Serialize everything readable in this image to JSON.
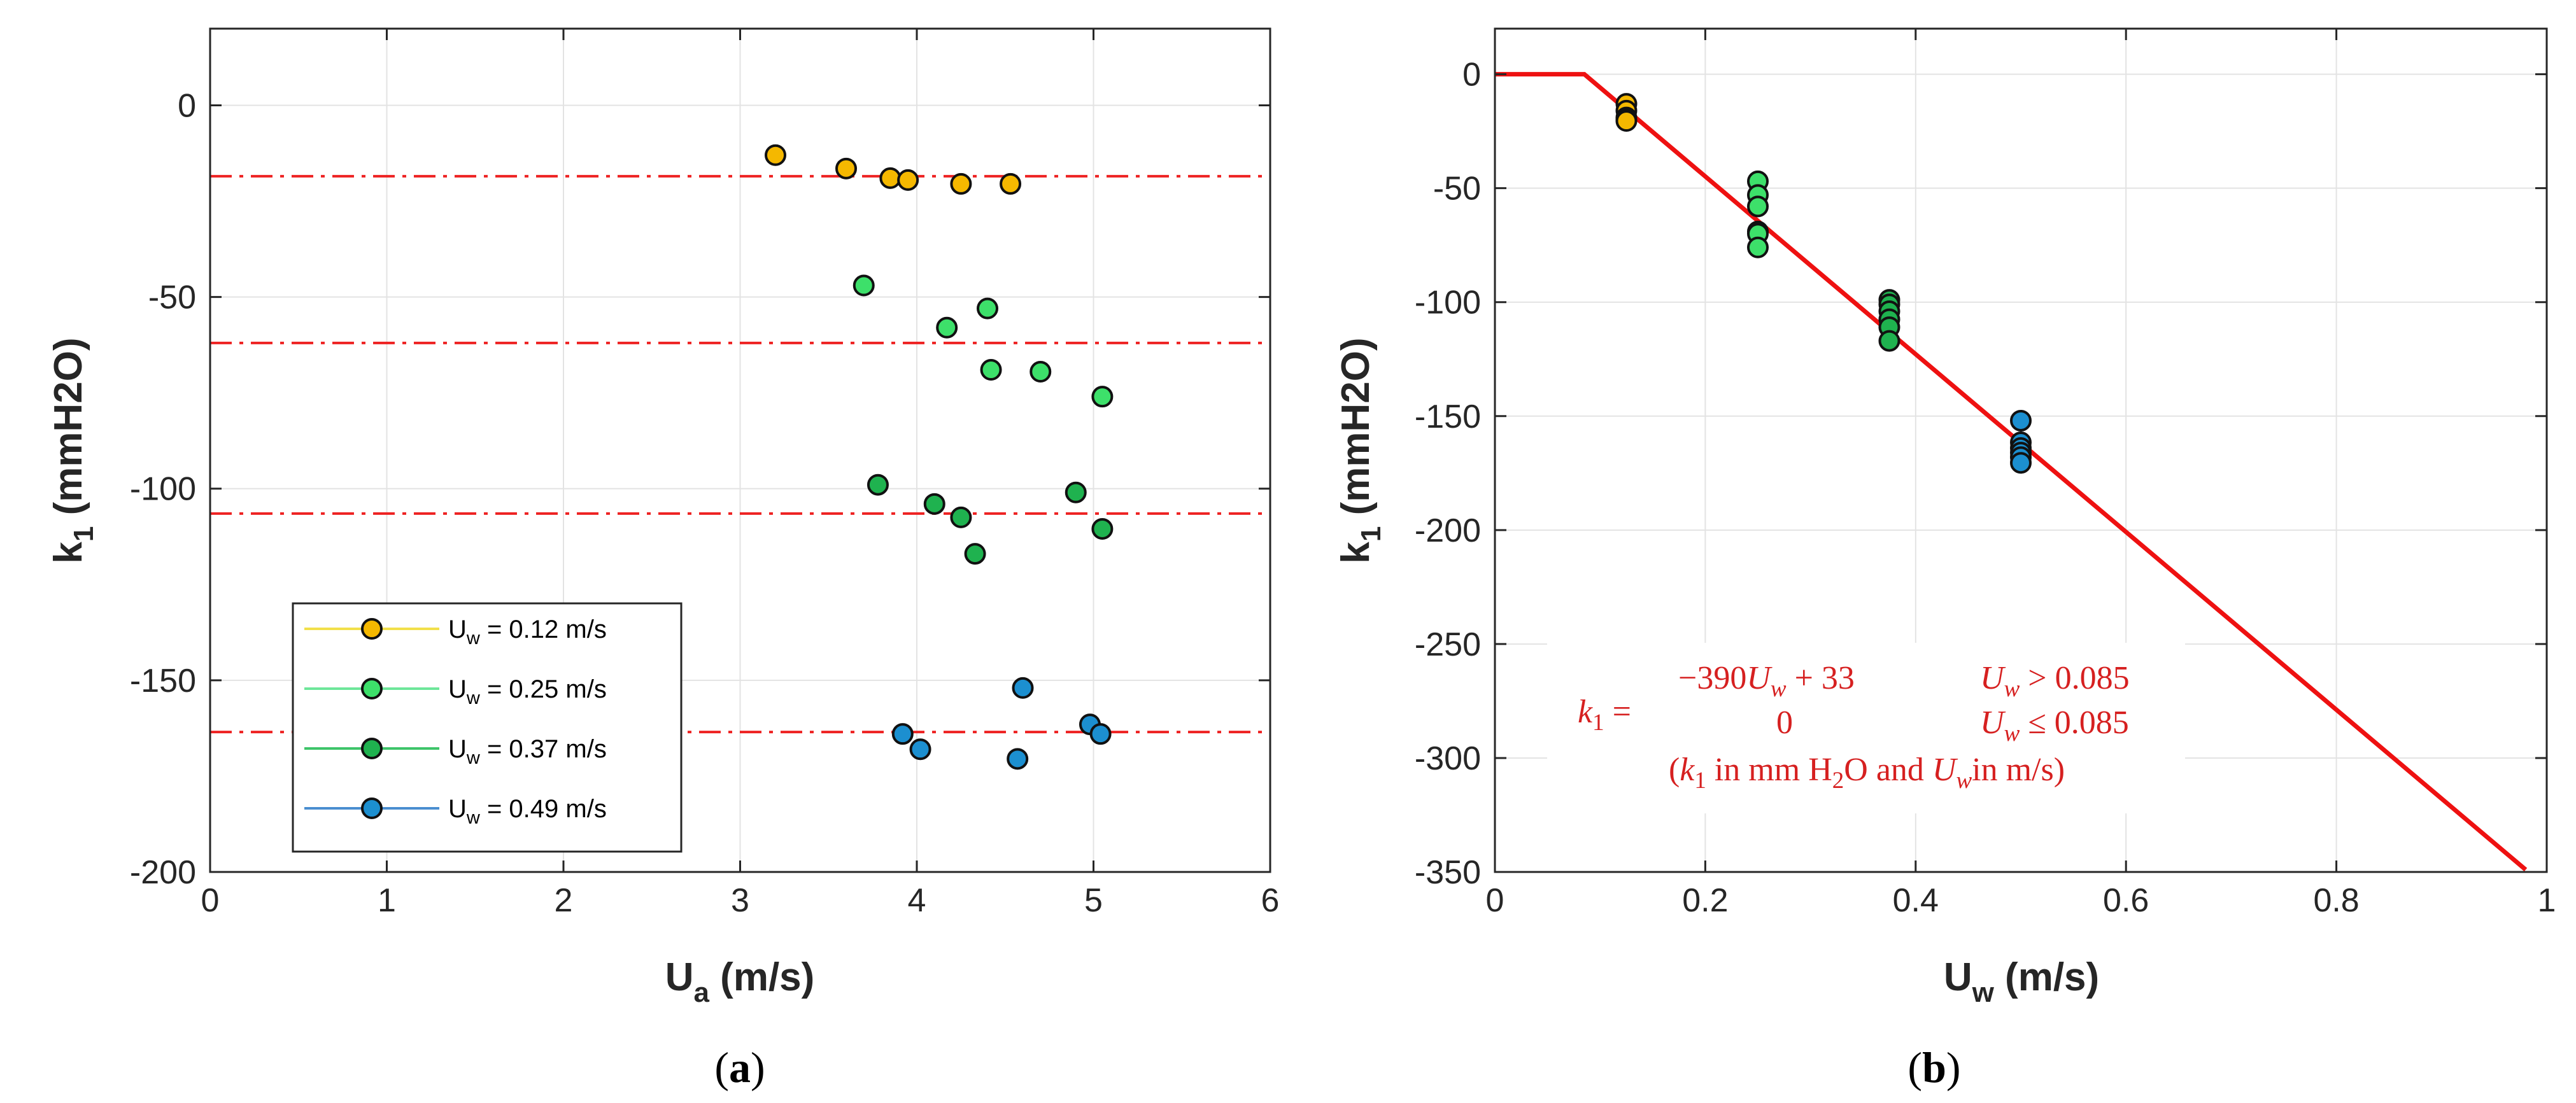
{
  "chart_data": [
    {
      "id": "a",
      "type": "scatter",
      "panel_label": "a",
      "xlabel": "U",
      "xlabel_sub": "a",
      "xlabel_unit": " (m/s)",
      "ylabel": "k",
      "ylabel_sub": "1",
      "ylabel_unit": " (mmH2O)",
      "xlim": [
        0,
        6
      ],
      "ylim": [
        -200,
        20
      ],
      "xticks": [
        0,
        1,
        2,
        3,
        4,
        5,
        6
      ],
      "yticks": [
        0,
        -50,
        -100,
        -150,
        -200
      ],
      "grid": true,
      "legend_position": "bottom-left",
      "reference_lines": {
        "style": "dash-dot",
        "color": "#ee2222",
        "values": [
          -18.5,
          -62,
          -106.5,
          -163.5
        ]
      },
      "series": [
        {
          "name": "U_w = 0.12 m/s",
          "legend_prefix": "U",
          "legend_sub": "w",
          "legend_rest": " = 0.12 m/s",
          "line_color": "#f2e04a",
          "marker_color": "#f5b800",
          "x": [
            3.2,
            3.6,
            3.85,
            3.95,
            4.25,
            4.53
          ],
          "y": [
            -13,
            -16.5,
            -19,
            -19.5,
            -20.5,
            -20.5
          ]
        },
        {
          "name": "U_w = 0.25 m/s",
          "legend_prefix": "U",
          "legend_sub": "w",
          "legend_rest": " = 0.25 m/s",
          "line_color": "#6ee69a",
          "marker_color": "#3de06a",
          "x": [
            3.7,
            4.4,
            4.17,
            4.42,
            4.7,
            5.05
          ],
          "y": [
            -47,
            -53,
            -58,
            -69,
            -69.5,
            -76
          ]
        },
        {
          "name": "U_w = 0.37 m/s",
          "legend_prefix": "U",
          "legend_sub": "w",
          "legend_rest": " = 0.37 m/s",
          "line_color": "#3ec46a",
          "marker_color": "#1fb24f",
          "x": [
            3.78,
            4.1,
            4.25,
            4.9,
            4.33,
            5.05
          ],
          "y": [
            -99,
            -104,
            -107.5,
            -101,
            -117,
            -110.5
          ]
        },
        {
          "name": "U_w = 0.49 m/s",
          "legend_prefix": "U",
          "legend_sub": "w",
          "legend_rest": " = 0.49 m/s",
          "line_color": "#4a8ed0",
          "marker_color": "#1c8fd0",
          "x": [
            4.6,
            3.92,
            4.02,
            4.57,
            4.98,
            5.04
          ],
          "y": [
            -152,
            -164,
            -168,
            -170.5,
            -161.5,
            -164
          ]
        }
      ]
    },
    {
      "id": "b",
      "type": "scatter",
      "panel_label": "b",
      "xlabel": "U",
      "xlabel_sub": "w",
      "xlabel_unit": " (m/s)",
      "ylabel": "k",
      "ylabel_sub": "1",
      "ylabel_unit": " (mmH2O)",
      "xlim": [
        0,
        1
      ],
      "ylim": [
        -350,
        20
      ],
      "xticks": [
        0,
        0.2,
        0.4,
        0.6,
        0.8,
        1
      ],
      "xtick_labels": [
        "0",
        "0.2",
        "0.4",
        "0.6",
        "0.8",
        "1"
      ],
      "yticks": [
        0,
        -50,
        -100,
        -150,
        -200,
        -250,
        -300,
        -350
      ],
      "grid": true,
      "fit_line": {
        "color": "#ee1111",
        "x": [
          0,
          0.085,
          0.98
        ],
        "y": [
          0,
          0,
          -349
        ]
      },
      "series": [
        {
          "name": "U_w = 0.12 m/s",
          "marker_color": "#f5b800",
          "x": [
            0.125,
            0.125,
            0.125,
            0.125,
            0.125
          ],
          "y": [
            -13,
            -16,
            -19,
            -20,
            -20.5
          ]
        },
        {
          "name": "U_w = 0.25 m/s",
          "marker_color": "#3de06a",
          "x": [
            0.25,
            0.25,
            0.25,
            0.25,
            0.25,
            0.25
          ],
          "y": [
            -47,
            -53,
            -58,
            -69,
            -70,
            -76
          ]
        },
        {
          "name": "U_w = 0.37 m/s",
          "marker_color": "#1fb24f",
          "x": [
            0.375,
            0.375,
            0.375,
            0.375,
            0.375,
            0.375
          ],
          "y": [
            -99,
            -101,
            -104,
            -107.5,
            -111,
            -117
          ]
        },
        {
          "name": "U_w = 0.49 m/s",
          "marker_color": "#1c8fd0",
          "x": [
            0.5,
            0.5,
            0.5,
            0.5,
            0.5,
            0.5
          ],
          "y": [
            -152,
            -161.5,
            -164,
            -166,
            -168,
            -170.5
          ]
        }
      ],
      "annotation": {
        "lhs": "k",
        "lhs_sub": "1",
        "equals": " =",
        "case1_expr_pre": "−390",
        "case1_expr_var": "U",
        "case1_expr_sub": "w",
        "case1_expr_post": " + 33",
        "case1_cond_var": "U",
        "case1_cond_sub": "w",
        "case1_cond_post": " > 0.085",
        "case2_expr": "0",
        "case2_cond_var": "U",
        "case2_cond_sub": "w",
        "case2_cond_post": " ≤ 0.085",
        "note_open": "(",
        "note_k": "k",
        "note_k_sub": "1",
        "note_mid1": " in mm H",
        "note_h2o_sub": "2",
        "note_mid2": "O and ",
        "note_u": "U",
        "note_u_sub": "w",
        "note_end": "in m/s)"
      }
    }
  ]
}
